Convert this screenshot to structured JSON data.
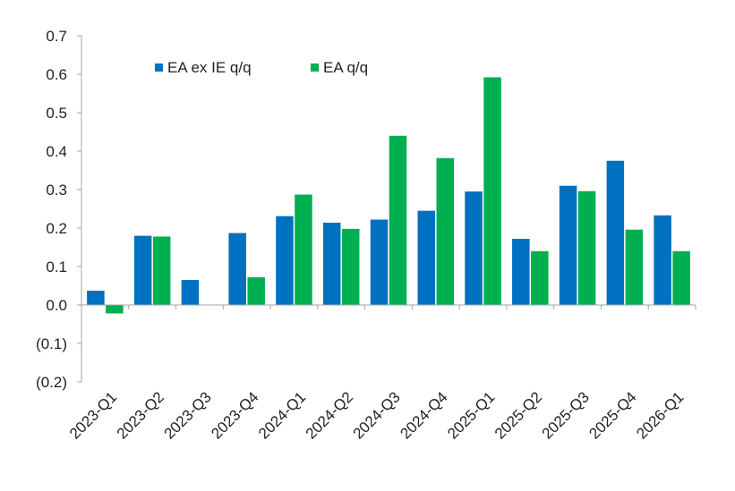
{
  "chart_data": {
    "type": "bar",
    "categories": [
      "2023-Q1",
      "2023-Q2",
      "2023-Q3",
      "2023-Q4",
      "2024-Q1",
      "2024-Q2",
      "2024-Q3",
      "2024-Q4",
      "2025-Q1",
      "2025-Q2",
      "2025-Q3",
      "2025-Q4",
      "2026-Q1"
    ],
    "series": [
      {
        "name": "EA ex IE q/q",
        "color": "#0070c0",
        "values": [
          0.037,
          0.18,
          0.065,
          0.187,
          0.231,
          0.214,
          0.222,
          0.245,
          0.295,
          0.172,
          0.31,
          0.375,
          0.233
        ]
      },
      {
        "name": "EA q/q",
        "color": "#00b050",
        "values": [
          -0.022,
          0.178,
          null,
          0.072,
          0.287,
          0.198,
          0.44,
          0.382,
          0.592,
          0.14,
          0.296,
          0.196,
          0.14
        ]
      }
    ],
    "ylim": [
      -0.2,
      0.7
    ],
    "yticks": [
      0.7,
      0.6,
      0.5,
      0.4,
      0.3,
      0.2,
      0.1,
      0.0,
      -0.1,
      -0.2
    ],
    "ytick_labels": [
      "0.7",
      "0.6",
      "0.5",
      "0.4",
      "0.3",
      "0.2",
      "0.1",
      "0.0",
      "(0.1)",
      "(0.2)"
    ],
    "legend_position": "top-left",
    "grid": false
  }
}
